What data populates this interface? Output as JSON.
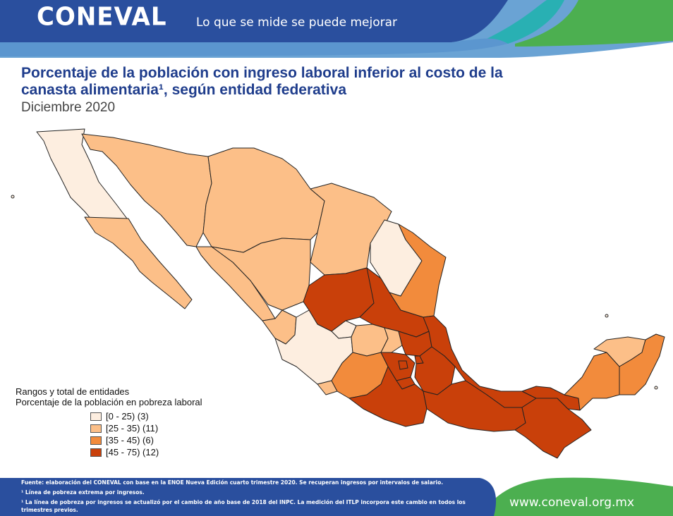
{
  "header": {
    "logo_text": "CONEVAL",
    "slogan": "Lo que se mide se puede mejorar",
    "bar_color": "#2a4f9e",
    "accent_color": "#4caf50"
  },
  "title": {
    "line1": "Porcentaje de la población con ingreso laboral inferior al costo de la",
    "line2": "canasta alimentaria¹, según entidad federativa",
    "subtitle": "Diciembre 2020"
  },
  "legend": {
    "heading1": "Rangos y total de entidades",
    "heading2": "Porcentaje de la población en pobreza laboral",
    "items": [
      {
        "label": "[0 - 25) (3)",
        "color": "#fdeee0"
      },
      {
        "label": "[25 - 35) (11)",
        "color": "#fcbf88"
      },
      {
        "label": "[35 - 45) (6)",
        "color": "#f28b3c"
      },
      {
        "label": "[45 - 75) (12)",
        "color": "#c9400a"
      }
    ]
  },
  "map_colors": {
    "class0": "#fdeee0",
    "class1": "#fcbf88",
    "class2": "#f28b3c",
    "class3": "#c9400a",
    "border": "#222222"
  },
  "footer": {
    "note1": "Fuente: elaboración del CONEVAL con base en la ENOE Nueva Edición cuarto trimestre 2020. Se recuperan ingresos por intervalos de salario.",
    "note2": "¹ Línea de pobreza extrema por ingresos.",
    "note3": "¹ La línea de pobreza por ingresos se actualizó por el cambio de año base de 2018 del INPC. La medición del ITLP incorpora este cambio en todos los trimestres previos.",
    "website": "www.coneval.org.mx"
  }
}
